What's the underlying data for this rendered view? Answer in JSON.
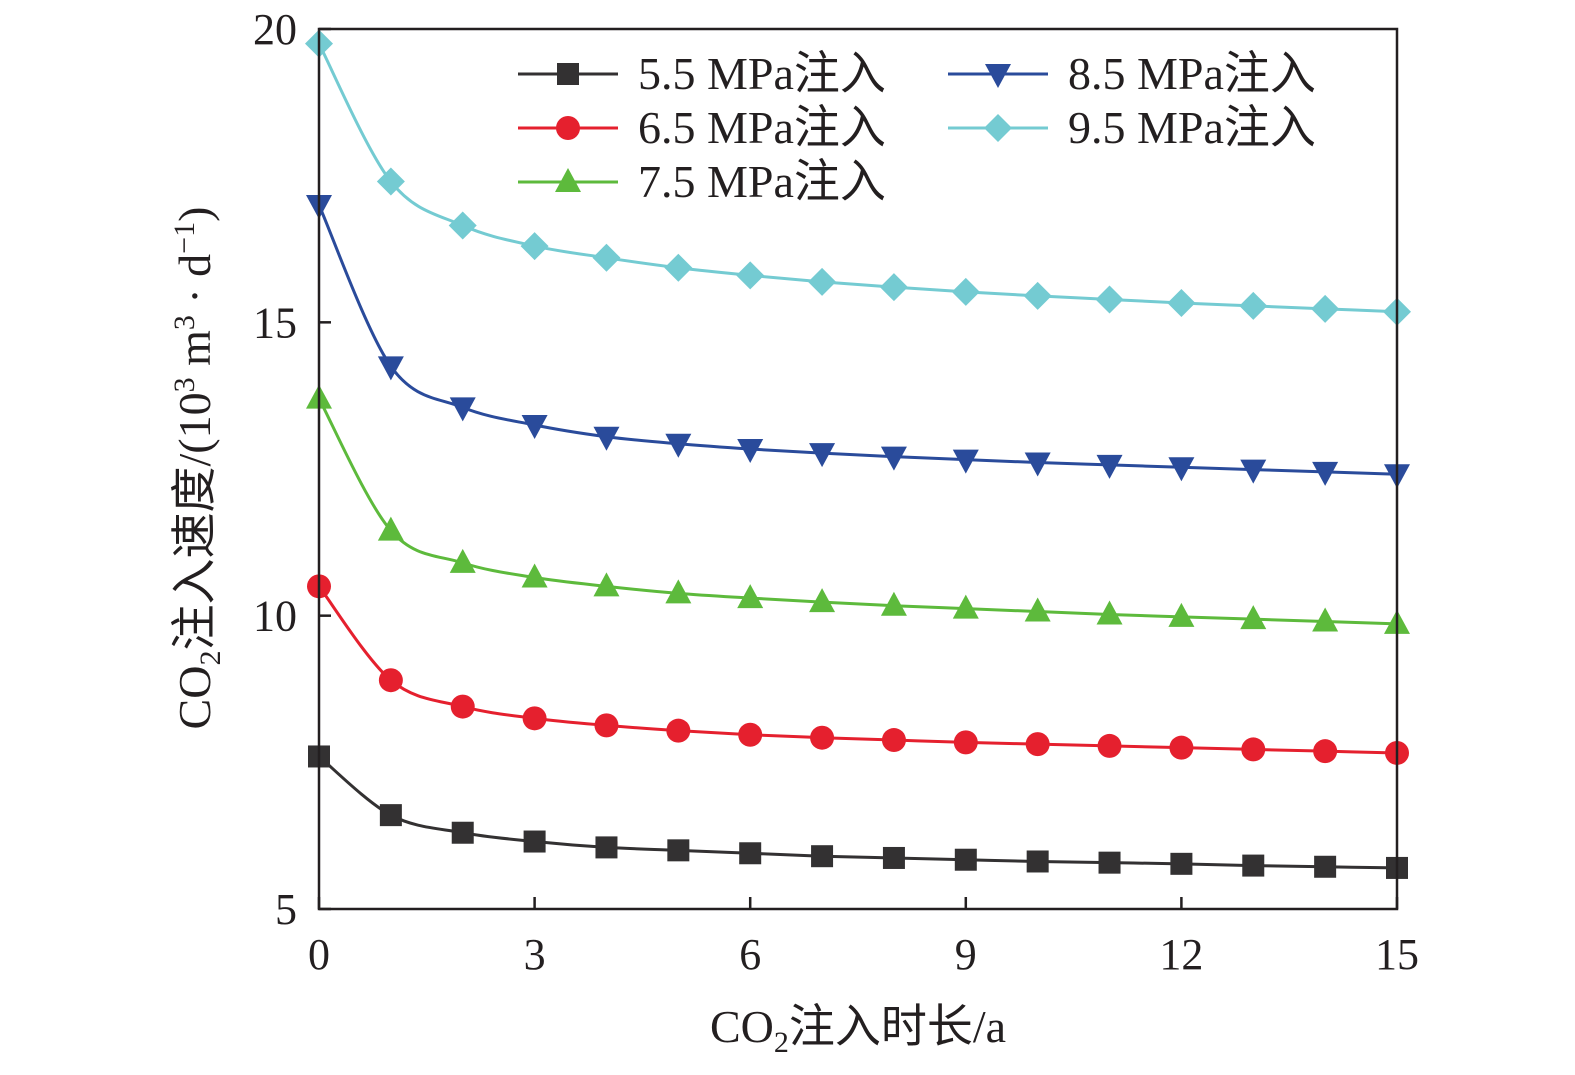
{
  "chart_data": {
    "type": "line",
    "xlabel": {
      "pre": "CO",
      "sub": "2",
      "post": "注入时长/a"
    },
    "ylabel": {
      "p1": "CO",
      "sub": "2",
      "p2": "注入速度/(10",
      "sup1": "3",
      "p3": " m",
      "sup2": "3",
      "p4": " · d",
      "sup3": "−1",
      "p5": ")"
    },
    "xlim": [
      0,
      15
    ],
    "ylim": [
      5,
      20
    ],
    "xticks": [
      0,
      3,
      6,
      9,
      12,
      15
    ],
    "yticks": [
      5,
      10,
      15,
      20
    ],
    "grid": false,
    "legend_position": "top-right",
    "x": [
      0,
      1,
      2,
      3,
      4,
      5,
      6,
      7,
      8,
      9,
      10,
      11,
      12,
      13,
      14,
      15
    ],
    "series": [
      {
        "name": "5.5 MPa注入",
        "color": "#333132",
        "marker": "square",
        "values": [
          7.6,
          6.6,
          6.3,
          6.15,
          6.05,
          6.0,
          5.95,
          5.9,
          5.87,
          5.84,
          5.81,
          5.79,
          5.77,
          5.74,
          5.72,
          5.7
        ]
      },
      {
        "name": "6.5 MPa注入",
        "color": "#e5202e",
        "marker": "circle",
        "values": [
          10.5,
          8.9,
          8.45,
          8.25,
          8.13,
          8.04,
          7.97,
          7.92,
          7.88,
          7.84,
          7.81,
          7.78,
          7.75,
          7.72,
          7.69,
          7.66
        ]
      },
      {
        "name": "7.5 MPa注入",
        "color": "#5dba3c",
        "marker": "triangle-up",
        "values": [
          13.7,
          11.45,
          10.9,
          10.65,
          10.5,
          10.38,
          10.3,
          10.23,
          10.17,
          10.12,
          10.07,
          10.02,
          9.98,
          9.94,
          9.9,
          9.86
        ]
      },
      {
        "name": "8.5 MPa注入",
        "color": "#2a4b9b",
        "marker": "triangle-down",
        "values": [
          17.0,
          14.25,
          13.55,
          13.25,
          13.05,
          12.93,
          12.84,
          12.77,
          12.71,
          12.66,
          12.61,
          12.57,
          12.53,
          12.49,
          12.45,
          12.41
        ]
      },
      {
        "name": "9.5 MPa注入",
        "color": "#74cbd2",
        "marker": "diamond",
        "values": [
          19.75,
          17.4,
          16.65,
          16.3,
          16.1,
          15.93,
          15.8,
          15.69,
          15.6,
          15.52,
          15.45,
          15.39,
          15.33,
          15.28,
          15.23,
          15.18
        ]
      }
    ]
  }
}
